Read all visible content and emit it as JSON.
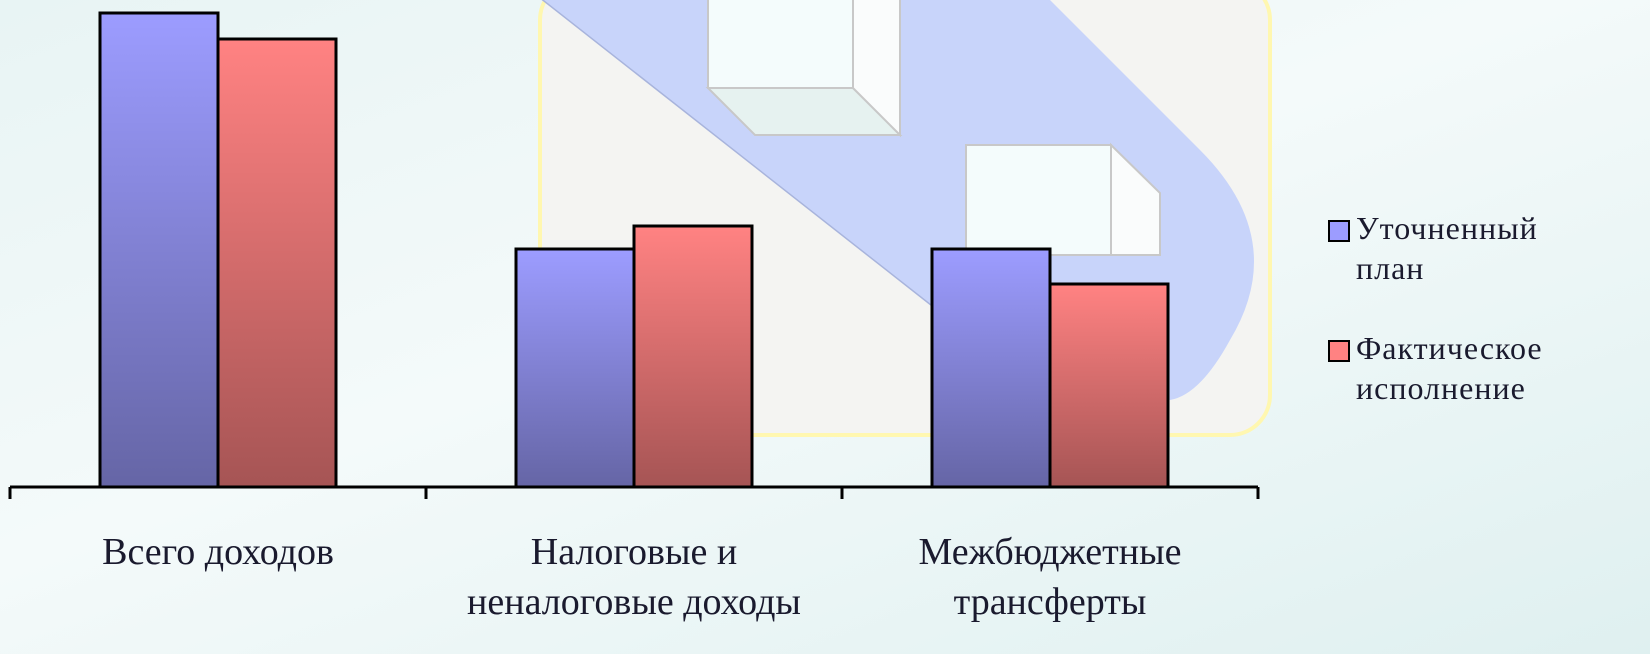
{
  "chart_data": {
    "type": "bar",
    "categories": [
      "Всего доходов",
      "Налоговые и\nненалоговые доходы",
      "Межбюджетные\nтрансферты"
    ],
    "series": [
      {
        "name": "Уточненный план",
        "color": "#9c9cff",
        "values": [
          474,
          238,
          238
        ]
      },
      {
        "name": "Фактическое исполнение",
        "color": "#ff8282",
        "values": [
          448,
          261,
          203
        ]
      }
    ],
    "ylim": [
      0,
      487
    ]
  }
}
